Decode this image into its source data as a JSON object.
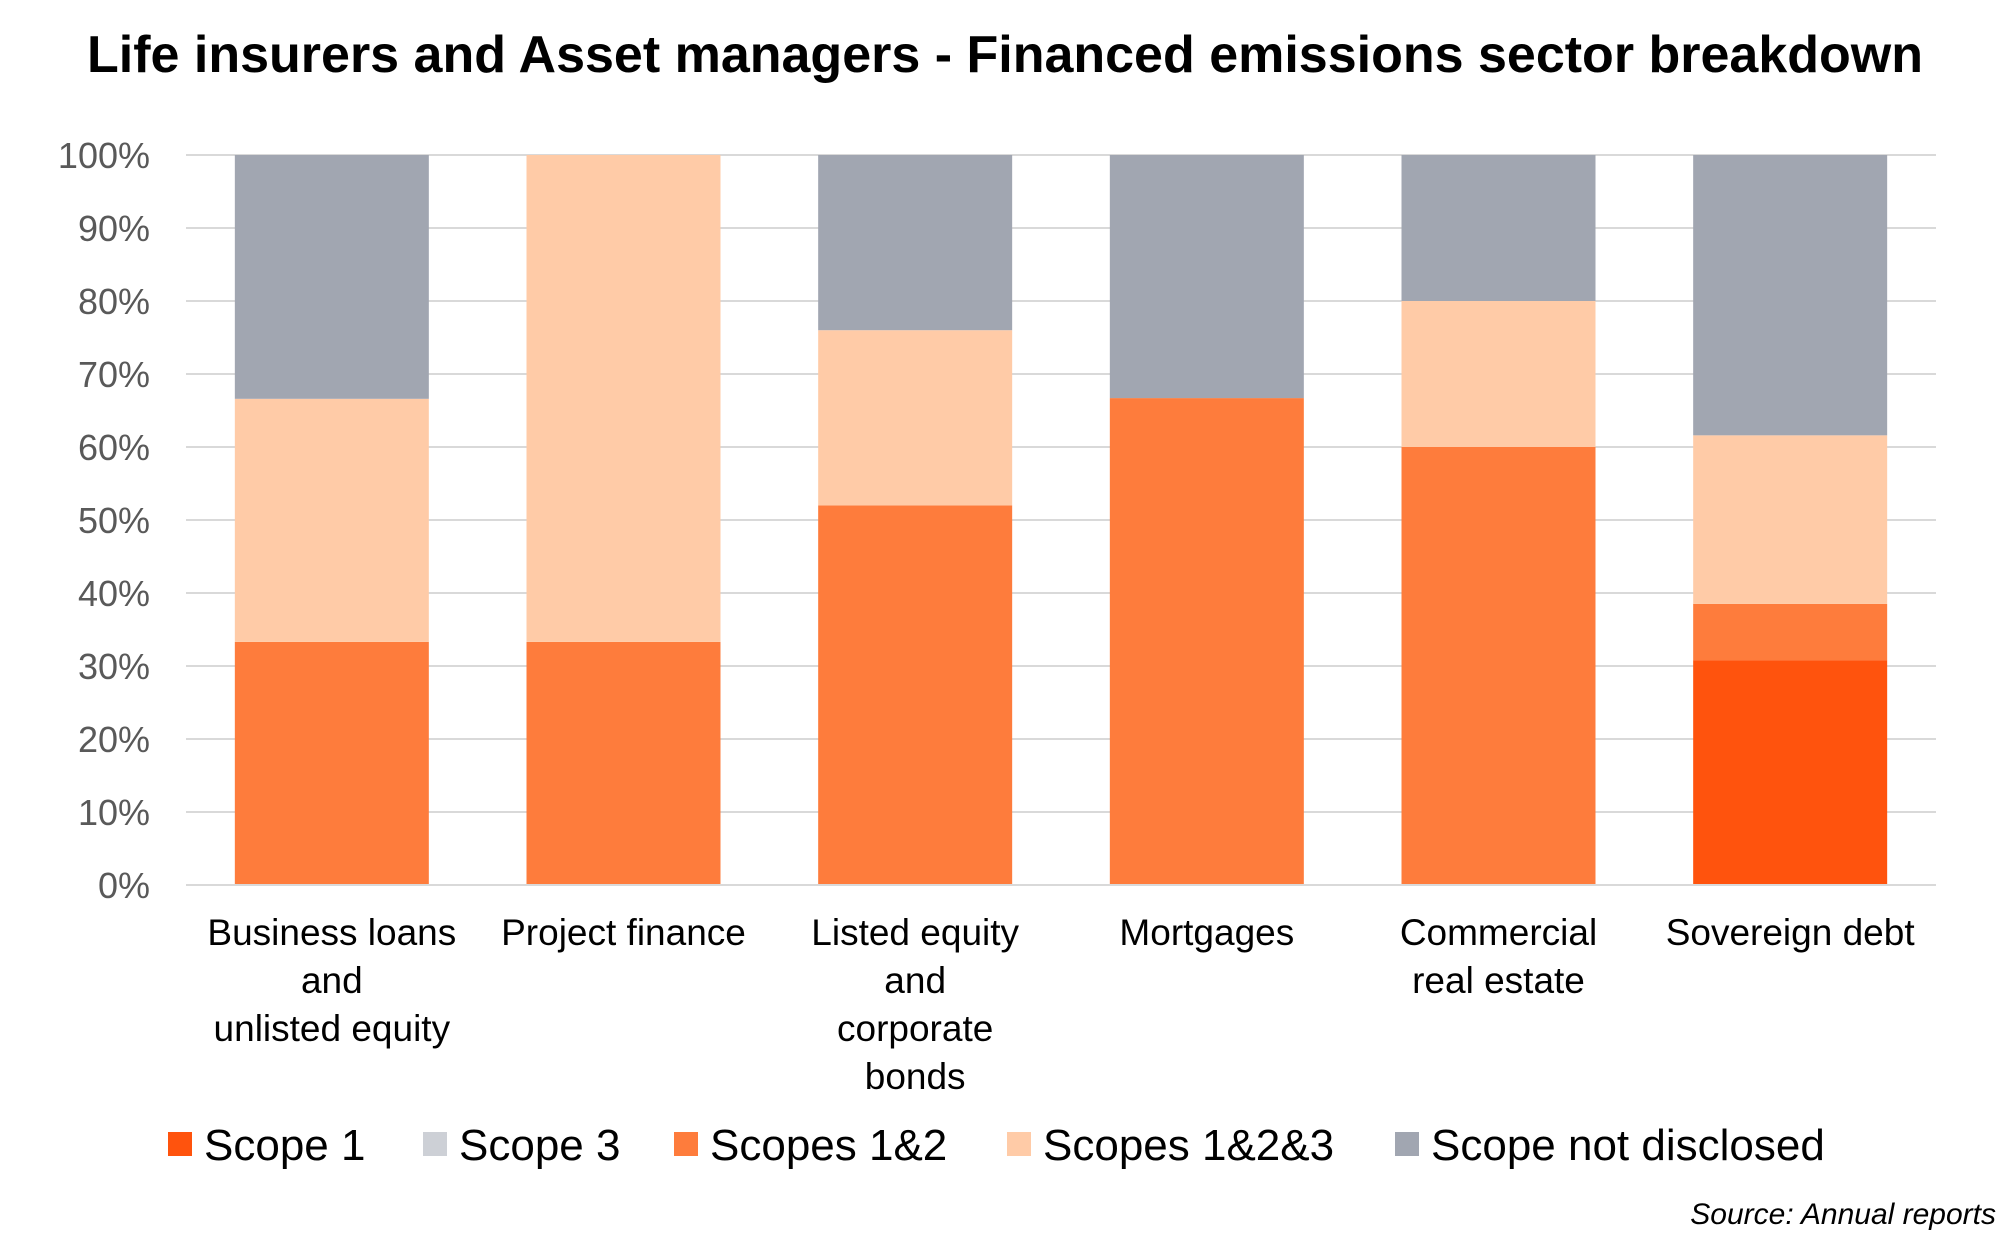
{
  "chart_data": {
    "type": "bar",
    "stacked": true,
    "title": "Life insurers and Asset managers - Financed emissions sector breakdown",
    "categories": [
      "Business loans and unlisted equity",
      "Project finance",
      "Listed equity and corporate bonds",
      "Mortgages",
      "Commercial real estate",
      "Sovereign debt"
    ],
    "category_label_lines": [
      [
        "Business loans",
        "and",
        "unlisted equity"
      ],
      [
        "Project finance"
      ],
      [
        "Listed equity",
        "and",
        "corporate",
        "bonds"
      ],
      [
        "Mortgages"
      ],
      [
        "Commercial",
        "real estate"
      ],
      [
        "Sovereign debt"
      ]
    ],
    "series": [
      {
        "name": "Scope 1",
        "color": "#FF530D",
        "values": [
          0,
          0,
          0,
          0,
          0,
          30.8
        ]
      },
      {
        "name": "Scope 3",
        "color": "#CDD0D6",
        "values": [
          0,
          0,
          0,
          0,
          0,
          0
        ]
      },
      {
        "name": "Scopes 1&2",
        "color": "#FE7C3C",
        "values": [
          33.3,
          33.3,
          52,
          66.7,
          60,
          7.7
        ]
      },
      {
        "name": "Scopes 1&2&3",
        "color": "#FFCBA7",
        "values": [
          33.3,
          66.7,
          24,
          0,
          20,
          23.1
        ]
      },
      {
        "name": "Scope not disclosed",
        "color": "#A1A6B1",
        "values": [
          33.4,
          0,
          24,
          33.3,
          20,
          38.4
        ]
      }
    ],
    "yticks": [
      "0%",
      "10%",
      "20%",
      "30%",
      "40%",
      "50%",
      "60%",
      "70%",
      "80%",
      "90%",
      "100%"
    ],
    "ylim": [
      0,
      100
    ],
    "grid": true,
    "legend": "bottom",
    "source": "Source: Annual reports"
  }
}
